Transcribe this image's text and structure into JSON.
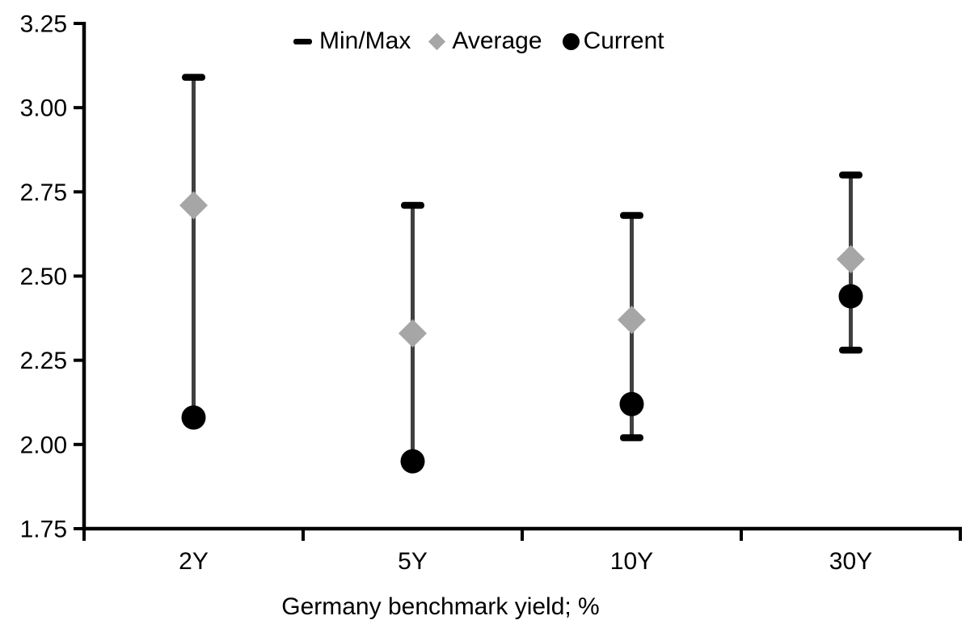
{
  "chart_data": {
    "type": "scatter",
    "subtype": "min-max-range-with-markers",
    "title": "",
    "xlabel": "Germany benchmark yield; %",
    "ylabel": "",
    "categories": [
      "2Y",
      "5Y",
      "10Y",
      "30Y"
    ],
    "ylim": [
      1.75,
      3.25
    ],
    "ytick_step": 0.25,
    "ytick_labels_top_to_bottom": [
      "3.25",
      "3.00",
      "2.75",
      "2.50",
      "2.25",
      "2.00",
      "1.75"
    ],
    "grid": false,
    "legend_position": "top-center",
    "errorbar_color": "#404040",
    "axis_color": "#000000",
    "series": [
      {
        "name": "Min/Max",
        "marker": "dash",
        "color": "#000000",
        "role": "range",
        "max": [
          3.09,
          2.71,
          2.68,
          2.8
        ],
        "min": [
          2.08,
          1.95,
          2.02,
          2.28
        ],
        "min_cap_visible": [
          false,
          false,
          true,
          true
        ]
      },
      {
        "name": "Average",
        "marker": "diamond",
        "color": "#a6a6a6",
        "values": [
          2.71,
          2.33,
          2.37,
          2.55
        ]
      },
      {
        "name": "Current",
        "marker": "circle",
        "color": "#000000",
        "values": [
          2.08,
          1.95,
          2.12,
          2.44
        ]
      }
    ]
  }
}
